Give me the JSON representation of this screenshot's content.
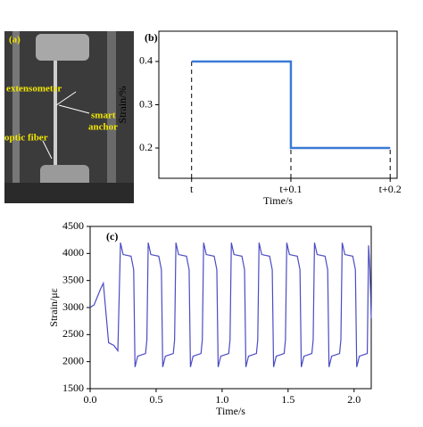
{
  "photo": {
    "label": "(a)",
    "annotations": [
      "extensometer",
      "smart",
      "anchor",
      "optic fiber"
    ]
  },
  "chart_data": [
    {
      "type": "line",
      "label": "(b)",
      "x_label": "Time/s",
      "y_label": "Strain/%",
      "xlim": [
        -0.033,
        0.207
      ],
      "ylim": [
        0.13,
        0.47
      ],
      "xticks": [
        {
          "value": 0,
          "label": "t"
        },
        {
          "value": 0.1,
          "label": "t+0.1"
        },
        {
          "value": 0.2,
          "label": "t+0.2"
        }
      ],
      "yticks": [
        0.2,
        0.3,
        0.4
      ],
      "tick_droplines": true,
      "series": [
        {
          "color": "#3a7bd5",
          "x": [
            0,
            0.1,
            0.1,
            0.2
          ],
          "values": [
            0.4,
            0.4,
            0.2,
            0.2
          ]
        }
      ]
    },
    {
      "type": "line",
      "label": "(c)",
      "x_label": "Time/s",
      "y_label": "Strain/με",
      "xlim": [
        0,
        2.13
      ],
      "ylim": [
        1500,
        4500
      ],
      "xticks": [
        {
          "value": 0,
          "label": "0.0"
        },
        0.5,
        {
          "value": 1,
          "label": "1.0"
        },
        1.5,
        {
          "value": 2,
          "label": "2.0"
        }
      ],
      "yticks": [
        1500,
        2000,
        2500,
        3000,
        3500,
        4000,
        4500
      ],
      "tick_droplines": false,
      "series": [
        {
          "color": "#4b4bc4",
          "x": [
            0,
            0.03,
            0.08,
            0.1,
            0.12,
            0.14,
            0.18,
            0.21,
            0.23,
            0.25,
            0.31,
            0.33,
            0.34,
            0.36,
            0.42,
            0.43,
            0.44,
            0.46,
            0.52,
            0.54,
            0.55,
            0.57,
            0.63,
            0.64,
            0.65,
            0.67,
            0.73,
            0.75,
            0.76,
            0.78,
            0.84,
            0.85,
            0.86,
            0.88,
            0.94,
            0.96,
            0.97,
            0.99,
            1.05,
            1.06,
            1.07,
            1.09,
            1.15,
            1.17,
            1.18,
            1.2,
            1.26,
            1.27,
            1.28,
            1.3,
            1.36,
            1.38,
            1.39,
            1.41,
            1.47,
            1.48,
            1.49,
            1.51,
            1.57,
            1.59,
            1.6,
            1.62,
            1.68,
            1.69,
            1.7,
            1.72,
            1.78,
            1.8,
            1.81,
            1.83,
            1.89,
            1.9,
            1.91,
            1.93,
            1.99,
            2.01,
            2.02,
            2.04,
            2.1,
            2.11,
            2.12,
            2.13
          ],
          "values": [
            3000,
            3050,
            3350,
            3450,
            2900,
            2350,
            2300,
            2200,
            4200,
            3980,
            3950,
            3700,
            1900,
            2100,
            2150,
            2400,
            4200,
            3980,
            3950,
            3700,
            1900,
            2100,
            2150,
            2400,
            4200,
            3980,
            3950,
            3700,
            1900,
            2100,
            2150,
            2400,
            4200,
            3980,
            3950,
            3700,
            1900,
            2100,
            2150,
            2400,
            4200,
            3980,
            3950,
            3700,
            1900,
            2100,
            2150,
            2400,
            4200,
            3980,
            3950,
            3700,
            1900,
            2100,
            2150,
            2400,
            4200,
            3980,
            3950,
            3700,
            1900,
            2100,
            2150,
            2400,
            4200,
            3980,
            3950,
            3700,
            1900,
            2100,
            2150,
            2400,
            4200,
            3980,
            3950,
            3700,
            1900,
            2100,
            2150,
            4150,
            3700,
            2800
          ]
        }
      ]
    }
  ]
}
